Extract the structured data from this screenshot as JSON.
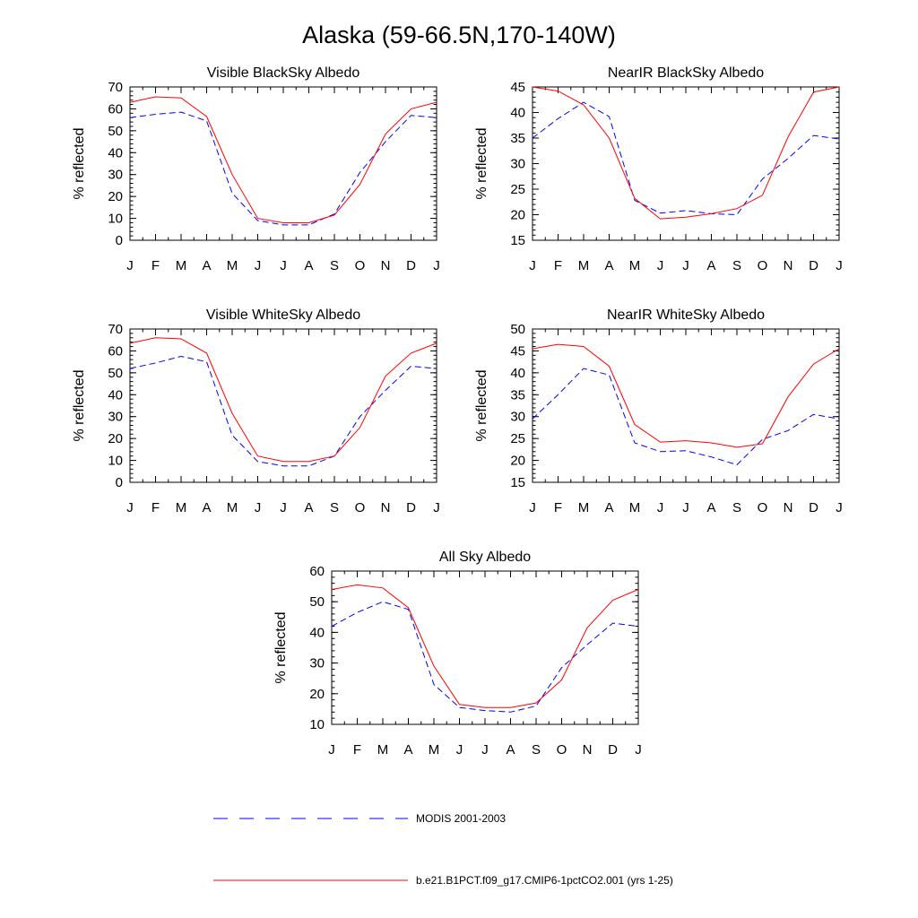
{
  "title": "Alaska (59-66.5N,170-140W)",
  "months": [
    "J",
    "F",
    "M",
    "A",
    "M",
    "J",
    "J",
    "A",
    "S",
    "O",
    "N",
    "D",
    "J"
  ],
  "colors": {
    "modis": "#0000ff",
    "model": "#ff0000"
  },
  "legend": {
    "modis": "MODIS 2001-2003",
    "model": "b.e21.B1PCT.f09_g17.CMIP6-1pctCO2.001 (yrs 1-25)"
  },
  "chart_data": [
    {
      "type": "line",
      "title": "Visible BlackSky Albedo",
      "ylabel": "% reflected",
      "ylim": [
        0,
        70
      ],
      "yticks": [
        0,
        10,
        20,
        30,
        40,
        50,
        60,
        70
      ],
      "series": [
        {
          "name": "MODIS 2001-2003",
          "style": "dashed",
          "values": [
            56,
            57.5,
            58.5,
            54.5,
            21.5,
            9,
            7,
            7,
            12,
            31,
            45,
            57,
            56
          ]
        },
        {
          "name": "b.e21.B1PCT.f09_g17.CMIP6-1pctCO2.001 (yrs 1-25)",
          "style": "solid",
          "values": [
            63,
            65.5,
            65,
            56.5,
            30,
            10,
            8,
            8,
            11.5,
            25.5,
            48.5,
            60,
            63
          ]
        }
      ]
    },
    {
      "type": "line",
      "title": "NearIR BlackSky Albedo",
      "ylabel": "% reflected",
      "ylim": [
        15,
        45
      ],
      "yticks": [
        15,
        20,
        25,
        30,
        35,
        40,
        45
      ],
      "series": [
        {
          "name": "MODIS 2001-2003",
          "style": "dashed",
          "values": [
            35,
            38.8,
            42,
            39.2,
            22.8,
            20.3,
            20.8,
            20.2,
            20,
            27,
            31,
            35.5,
            34.8
          ]
        },
        {
          "name": "b.e21.B1PCT.f09_g17.CMIP6-1pctCO2.001 (yrs 1-25)",
          "style": "solid",
          "values": [
            45,
            44.2,
            41.5,
            35,
            23.2,
            19.2,
            19.5,
            20.2,
            21.2,
            23.8,
            35.2,
            44,
            45
          ]
        }
      ]
    },
    {
      "type": "line",
      "title": "Visible WhiteSky Albedo",
      "ylabel": "% reflected",
      "ylim": [
        0,
        70
      ],
      "yticks": [
        0,
        10,
        20,
        30,
        40,
        50,
        60,
        70
      ],
      "series": [
        {
          "name": "MODIS 2001-2003",
          "style": "dashed",
          "values": [
            52,
            54.5,
            57.5,
            55,
            21.5,
            9.5,
            7.5,
            7.5,
            12,
            30,
            42,
            53,
            52
          ]
        },
        {
          "name": "b.e21.B1PCT.f09_g17.CMIP6-1pctCO2.001 (yrs 1-25)",
          "style": "solid",
          "values": [
            63.5,
            66,
            65.5,
            59,
            31.5,
            12,
            9.5,
            9.5,
            12,
            25,
            48.5,
            59,
            63.5
          ]
        }
      ]
    },
    {
      "type": "line",
      "title": "NearIR WhiteSky Albedo",
      "ylabel": "% reflected",
      "ylim": [
        15,
        50
      ],
      "yticks": [
        15,
        20,
        25,
        30,
        35,
        40,
        45,
        50
      ],
      "series": [
        {
          "name": "MODIS 2001-2003",
          "style": "dashed",
          "values": [
            29.5,
            35,
            41,
            39.5,
            24,
            22,
            22.2,
            20.8,
            19,
            24.8,
            26.8,
            30.5,
            29.5
          ]
        },
        {
          "name": "b.e21.B1PCT.f09_g17.CMIP6-1pctCO2.001 (yrs 1-25)",
          "style": "solid",
          "values": [
            45.5,
            46.5,
            46,
            41.5,
            28.2,
            24.2,
            24.5,
            24,
            23,
            23.8,
            34.5,
            42,
            45.5
          ]
        }
      ]
    },
    {
      "type": "line",
      "title": "All Sky Albedo",
      "ylabel": "% reflected",
      "ylim": [
        10,
        60
      ],
      "yticks": [
        10,
        20,
        30,
        40,
        50,
        60
      ],
      "series": [
        {
          "name": "MODIS 2001-2003",
          "style": "dashed",
          "values": [
            42,
            46.5,
            50,
            47.5,
            23,
            15.5,
            14.5,
            14,
            16,
            28.5,
            36,
            43,
            42
          ]
        },
        {
          "name": "b.e21.B1PCT.f09_g17.CMIP6-1pctCO2.001 (yrs 1-25)",
          "style": "solid",
          "values": [
            54,
            55.5,
            54.5,
            48,
            29,
            16.5,
            15.5,
            15.5,
            17,
            24.5,
            41.5,
            50.5,
            54
          ]
        }
      ]
    }
  ]
}
